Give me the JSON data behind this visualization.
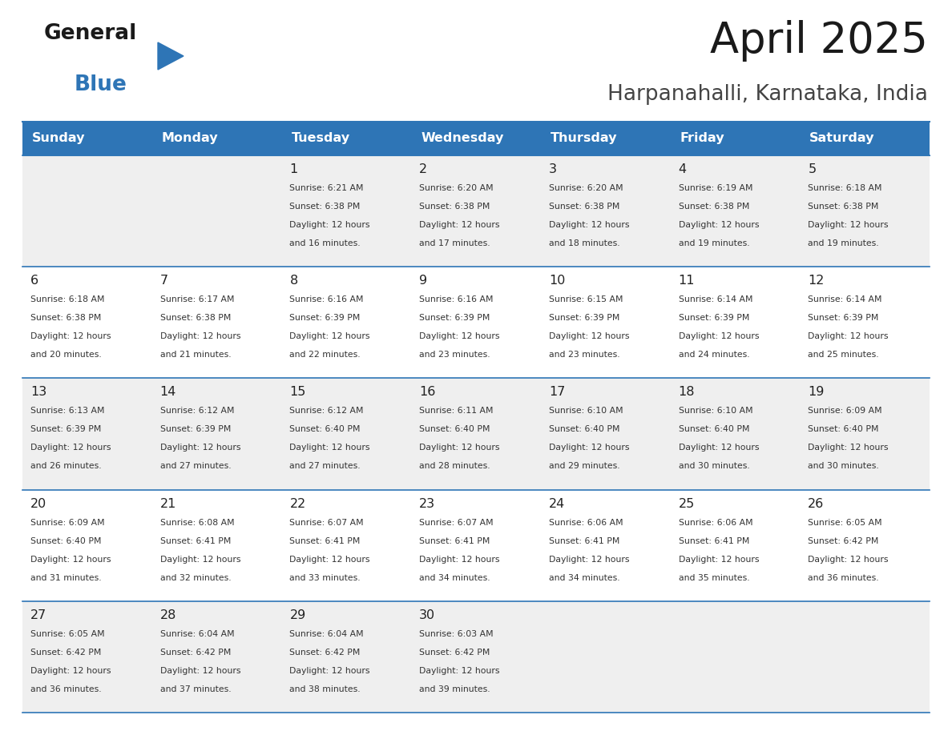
{
  "title": "April 2025",
  "subtitle": "Harpanahalli, Karnataka, India",
  "days_of_week": [
    "Sunday",
    "Monday",
    "Tuesday",
    "Wednesday",
    "Thursday",
    "Friday",
    "Saturday"
  ],
  "header_bg": "#2E75B6",
  "header_text_color": "#FFFFFF",
  "cell_bg_light": "#EFEFEF",
  "cell_bg_white": "#FFFFFF",
  "border_color": "#2E75B6",
  "text_color": "#222222",
  "small_text_color": "#333333",
  "calendar_data": [
    [
      {
        "day": "",
        "sunrise": "",
        "sunset": "",
        "daylight": ""
      },
      {
        "day": "",
        "sunrise": "",
        "sunset": "",
        "daylight": ""
      },
      {
        "day": "1",
        "sunrise": "Sunrise: 6:21 AM",
        "sunset": "Sunset: 6:38 PM",
        "daylight": "Daylight: 12 hours\nand 16 minutes."
      },
      {
        "day": "2",
        "sunrise": "Sunrise: 6:20 AM",
        "sunset": "Sunset: 6:38 PM",
        "daylight": "Daylight: 12 hours\nand 17 minutes."
      },
      {
        "day": "3",
        "sunrise": "Sunrise: 6:20 AM",
        "sunset": "Sunset: 6:38 PM",
        "daylight": "Daylight: 12 hours\nand 18 minutes."
      },
      {
        "day": "4",
        "sunrise": "Sunrise: 6:19 AM",
        "sunset": "Sunset: 6:38 PM",
        "daylight": "Daylight: 12 hours\nand 19 minutes."
      },
      {
        "day": "5",
        "sunrise": "Sunrise: 6:18 AM",
        "sunset": "Sunset: 6:38 PM",
        "daylight": "Daylight: 12 hours\nand 19 minutes."
      }
    ],
    [
      {
        "day": "6",
        "sunrise": "Sunrise: 6:18 AM",
        "sunset": "Sunset: 6:38 PM",
        "daylight": "Daylight: 12 hours\nand 20 minutes."
      },
      {
        "day": "7",
        "sunrise": "Sunrise: 6:17 AM",
        "sunset": "Sunset: 6:38 PM",
        "daylight": "Daylight: 12 hours\nand 21 minutes."
      },
      {
        "day": "8",
        "sunrise": "Sunrise: 6:16 AM",
        "sunset": "Sunset: 6:39 PM",
        "daylight": "Daylight: 12 hours\nand 22 minutes."
      },
      {
        "day": "9",
        "sunrise": "Sunrise: 6:16 AM",
        "sunset": "Sunset: 6:39 PM",
        "daylight": "Daylight: 12 hours\nand 23 minutes."
      },
      {
        "day": "10",
        "sunrise": "Sunrise: 6:15 AM",
        "sunset": "Sunset: 6:39 PM",
        "daylight": "Daylight: 12 hours\nand 23 minutes."
      },
      {
        "day": "11",
        "sunrise": "Sunrise: 6:14 AM",
        "sunset": "Sunset: 6:39 PM",
        "daylight": "Daylight: 12 hours\nand 24 minutes."
      },
      {
        "day": "12",
        "sunrise": "Sunrise: 6:14 AM",
        "sunset": "Sunset: 6:39 PM",
        "daylight": "Daylight: 12 hours\nand 25 minutes."
      }
    ],
    [
      {
        "day": "13",
        "sunrise": "Sunrise: 6:13 AM",
        "sunset": "Sunset: 6:39 PM",
        "daylight": "Daylight: 12 hours\nand 26 minutes."
      },
      {
        "day": "14",
        "sunrise": "Sunrise: 6:12 AM",
        "sunset": "Sunset: 6:39 PM",
        "daylight": "Daylight: 12 hours\nand 27 minutes."
      },
      {
        "day": "15",
        "sunrise": "Sunrise: 6:12 AM",
        "sunset": "Sunset: 6:40 PM",
        "daylight": "Daylight: 12 hours\nand 27 minutes."
      },
      {
        "day": "16",
        "sunrise": "Sunrise: 6:11 AM",
        "sunset": "Sunset: 6:40 PM",
        "daylight": "Daylight: 12 hours\nand 28 minutes."
      },
      {
        "day": "17",
        "sunrise": "Sunrise: 6:10 AM",
        "sunset": "Sunset: 6:40 PM",
        "daylight": "Daylight: 12 hours\nand 29 minutes."
      },
      {
        "day": "18",
        "sunrise": "Sunrise: 6:10 AM",
        "sunset": "Sunset: 6:40 PM",
        "daylight": "Daylight: 12 hours\nand 30 minutes."
      },
      {
        "day": "19",
        "sunrise": "Sunrise: 6:09 AM",
        "sunset": "Sunset: 6:40 PM",
        "daylight": "Daylight: 12 hours\nand 30 minutes."
      }
    ],
    [
      {
        "day": "20",
        "sunrise": "Sunrise: 6:09 AM",
        "sunset": "Sunset: 6:40 PM",
        "daylight": "Daylight: 12 hours\nand 31 minutes."
      },
      {
        "day": "21",
        "sunrise": "Sunrise: 6:08 AM",
        "sunset": "Sunset: 6:41 PM",
        "daylight": "Daylight: 12 hours\nand 32 minutes."
      },
      {
        "day": "22",
        "sunrise": "Sunrise: 6:07 AM",
        "sunset": "Sunset: 6:41 PM",
        "daylight": "Daylight: 12 hours\nand 33 minutes."
      },
      {
        "day": "23",
        "sunrise": "Sunrise: 6:07 AM",
        "sunset": "Sunset: 6:41 PM",
        "daylight": "Daylight: 12 hours\nand 34 minutes."
      },
      {
        "day": "24",
        "sunrise": "Sunrise: 6:06 AM",
        "sunset": "Sunset: 6:41 PM",
        "daylight": "Daylight: 12 hours\nand 34 minutes."
      },
      {
        "day": "25",
        "sunrise": "Sunrise: 6:06 AM",
        "sunset": "Sunset: 6:41 PM",
        "daylight": "Daylight: 12 hours\nand 35 minutes."
      },
      {
        "day": "26",
        "sunrise": "Sunrise: 6:05 AM",
        "sunset": "Sunset: 6:42 PM",
        "daylight": "Daylight: 12 hours\nand 36 minutes."
      }
    ],
    [
      {
        "day": "27",
        "sunrise": "Sunrise: 6:05 AM",
        "sunset": "Sunset: 6:42 PM",
        "daylight": "Daylight: 12 hours\nand 36 minutes."
      },
      {
        "day": "28",
        "sunrise": "Sunrise: 6:04 AM",
        "sunset": "Sunset: 6:42 PM",
        "daylight": "Daylight: 12 hours\nand 37 minutes."
      },
      {
        "day": "29",
        "sunrise": "Sunrise: 6:04 AM",
        "sunset": "Sunset: 6:42 PM",
        "daylight": "Daylight: 12 hours\nand 38 minutes."
      },
      {
        "day": "30",
        "sunrise": "Sunrise: 6:03 AM",
        "sunset": "Sunset: 6:42 PM",
        "daylight": "Daylight: 12 hours\nand 39 minutes."
      },
      {
        "day": "",
        "sunrise": "",
        "sunset": "",
        "daylight": ""
      },
      {
        "day": "",
        "sunrise": "",
        "sunset": "",
        "daylight": ""
      },
      {
        "day": "",
        "sunrise": "",
        "sunset": "",
        "daylight": ""
      }
    ]
  ],
  "fig_width": 11.88,
  "fig_height": 9.18,
  "dpi": 100
}
